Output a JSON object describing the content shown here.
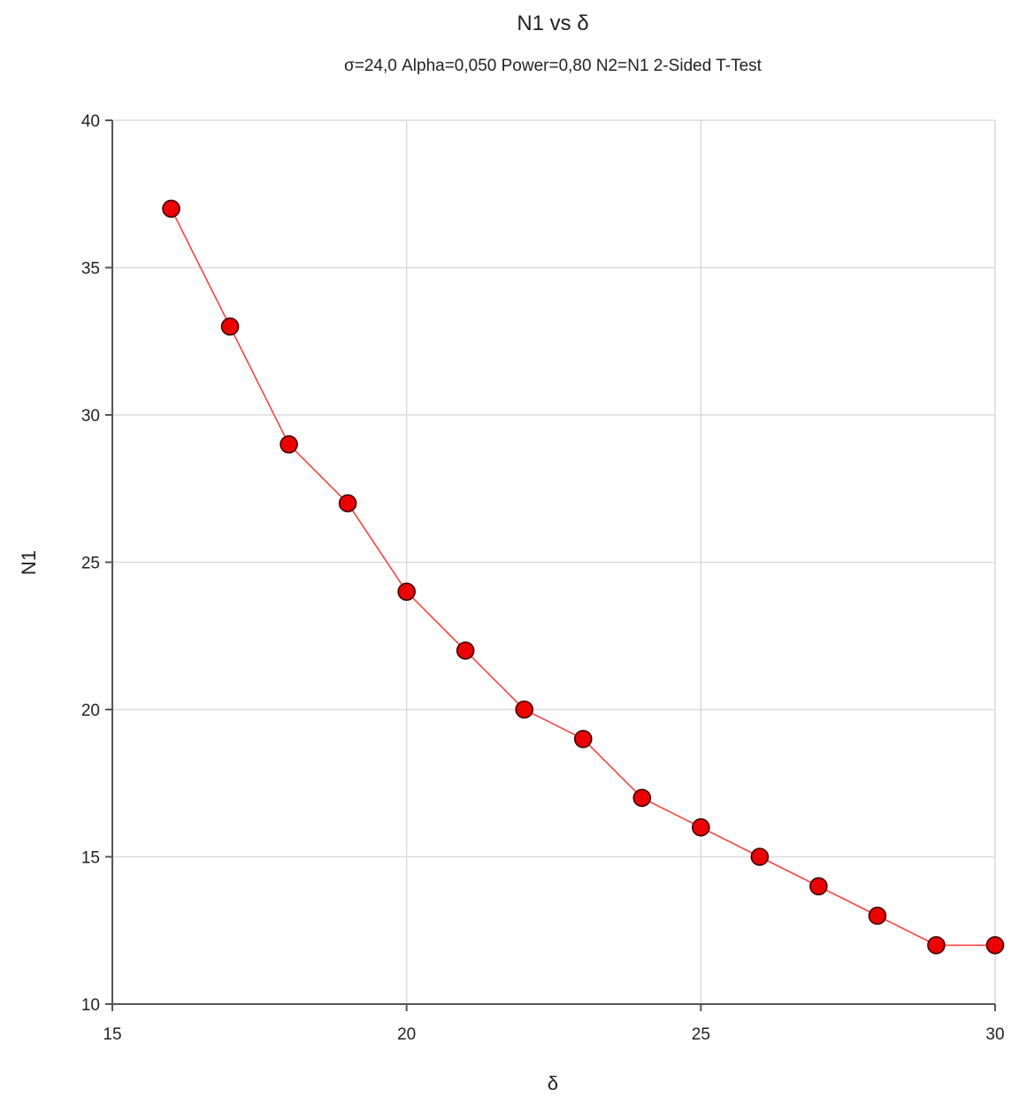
{
  "chart_data": {
    "type": "line",
    "title": "N1 vs δ",
    "subtitle": "σ=24,0 Alpha=0,050 Power=0,80 N2=N1 2-Sided T-Test",
    "xlabel": "δ",
    "ylabel": "N1",
    "xlim": [
      15,
      30
    ],
    "ylim": [
      10,
      40
    ],
    "x_ticks": [
      15,
      20,
      25,
      30
    ],
    "y_ticks": [
      10,
      15,
      20,
      25,
      30,
      35,
      40
    ],
    "grid": true,
    "series": [
      {
        "x": [
          16,
          17,
          18,
          19,
          20,
          21,
          22,
          23,
          24,
          25,
          26,
          27,
          28,
          29,
          30
        ],
        "y": [
          37,
          33,
          29,
          27,
          24,
          22,
          20,
          19,
          17,
          16,
          15,
          14,
          13,
          12,
          12
        ],
        "line_color": "#ff4040",
        "marker_fill": "#ee0000",
        "marker_stroke": "#3a0000"
      }
    ],
    "colors": {
      "grid": "#dcdcdc",
      "axis": "#555555"
    }
  }
}
